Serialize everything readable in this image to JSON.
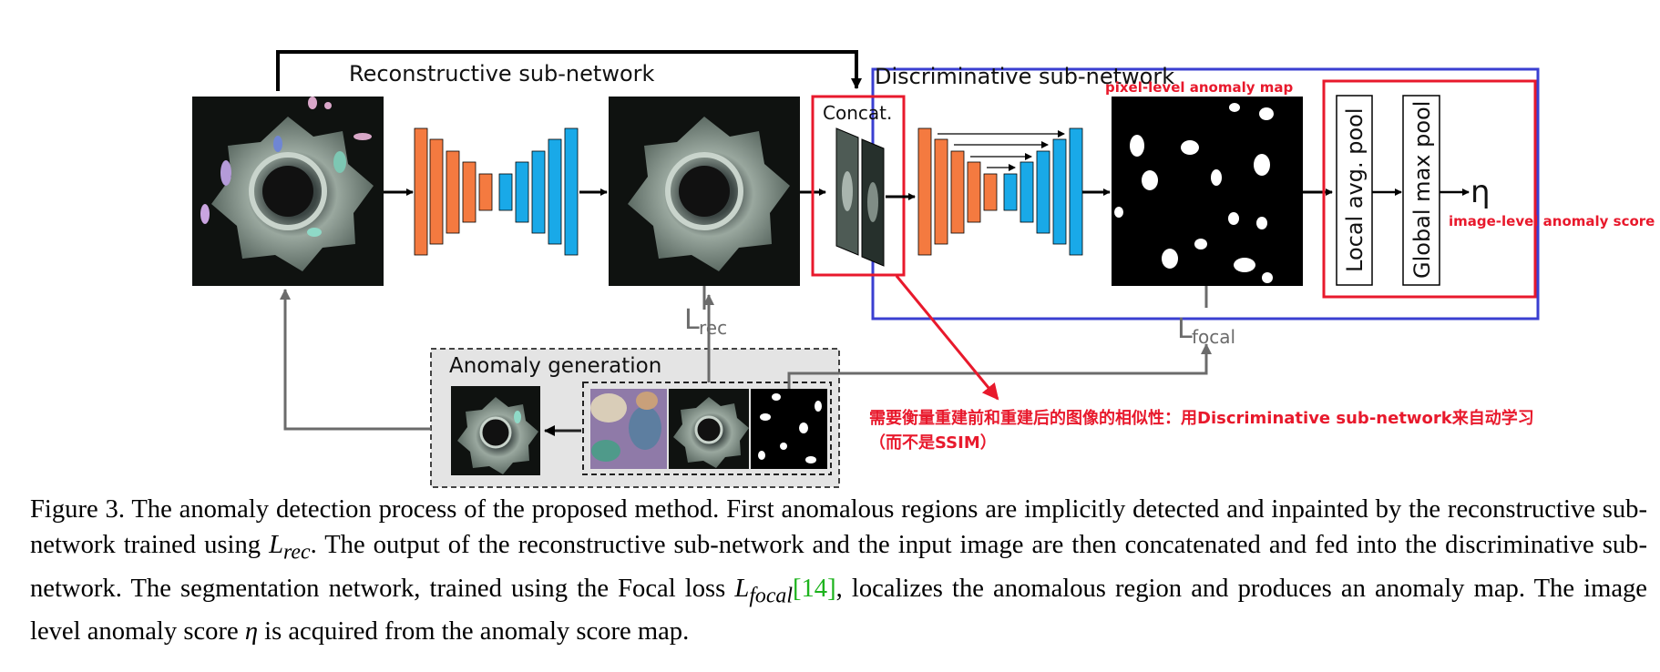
{
  "diagram": {
    "reconstructive_label": "Reconstructive sub-network",
    "discriminative_label": "Discriminative sub-network",
    "concat_label": "Concat.",
    "loss_rec": "L",
    "loss_rec_sub": "rec",
    "loss_focal": "L",
    "loss_focal_sub": "focal",
    "anomaly_generation_label": "Anomaly generation",
    "local_pool_label": "Local avg. pool",
    "global_pool_label": "Global max pool",
    "eta": "η"
  },
  "annotations": {
    "pixel_map": "pixel-level anomaly map",
    "image_score": "image-level anomaly score",
    "note_line1": "需要衡量重建前和重建后的图像的相似性：用Discriminative sub-network来自动学习",
    "note_line2": "（而不是SSIM）"
  },
  "caption": {
    "p1": "Figure 3. The anomaly detection process of the proposed method. First anomalous regions are implicitly detected and inpainted by the reconstructive sub-network trained using ",
    "m1": "L",
    "m1_sub": "rec",
    "p2": ". The output of the reconstructive sub-network and the input image are then concatenated and fed into the discriminative sub-network. The segmentation network, trained using the Focal loss ",
    "m2": "L",
    "m2_sub": "focal",
    "cite": "[14]",
    "p3": ", localizes the anomalous region and produces an anomaly map. The image level anomaly score ",
    "m3": "η",
    "p4": " is acquired from the anomaly score map."
  },
  "colors": {
    "encoder": "#f47a40",
    "decoder": "#19a9e8",
    "red_box": "#e8192c",
    "blue_box": "#3a3fd1",
    "arrow_gray": "#6b6b6b",
    "cite_green": "#1db31d"
  }
}
